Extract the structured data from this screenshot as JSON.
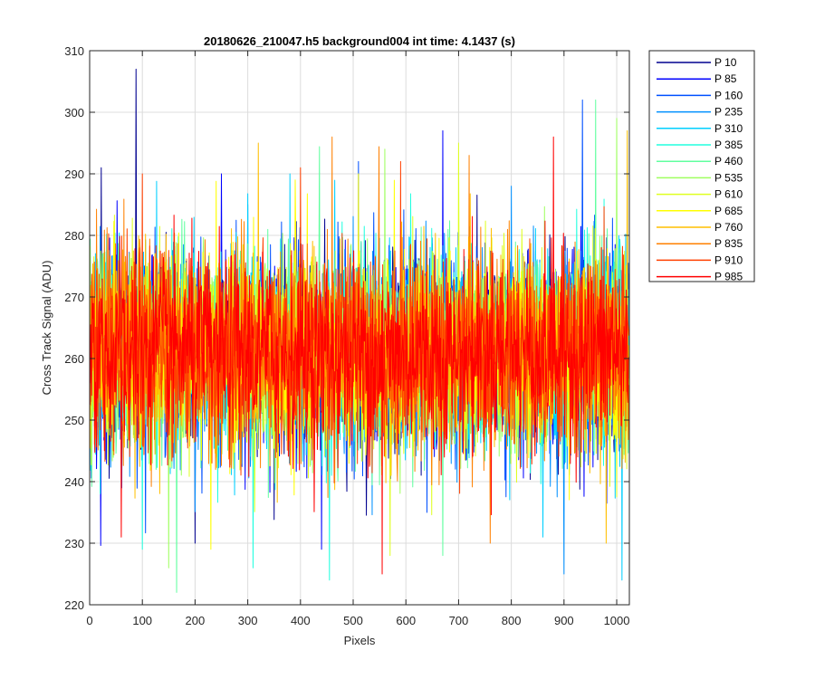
{
  "chart_data": {
    "type": "line",
    "title": "20180626_210047.h5  background004   int time: 4.1437 (s)",
    "xlabel": "Pixels",
    "ylabel": "Cross Track Signal (ADU)",
    "xlim": [
      0,
      1024
    ],
    "ylim": [
      220,
      310
    ],
    "xticks": [
      0,
      100,
      200,
      300,
      400,
      500,
      600,
      700,
      800,
      900,
      1000
    ],
    "yticks": [
      220,
      230,
      240,
      250,
      260,
      270,
      280,
      290,
      300,
      310
    ],
    "grid": true,
    "legend_position": "outside-right",
    "noise_model": {
      "mean": 261,
      "std": 10,
      "n_points": 1024
    },
    "series": [
      {
        "name": "P 10",
        "color": "#00008f",
        "peaks": [
          [
            88,
            307
          ],
          [
            22,
            291
          ],
          [
            200,
            230
          ]
        ]
      },
      {
        "name": "P 85",
        "color": "#0000ff",
        "peaks": [
          [
            670,
            297
          ],
          [
            250,
            290
          ],
          [
            440,
            229
          ]
        ]
      },
      {
        "name": "P 160",
        "color": "#0050ff",
        "peaks": [
          [
            935,
            302
          ],
          [
            510,
            292
          ],
          [
            640,
            235
          ]
        ]
      },
      {
        "name": "P 235",
        "color": "#0090ff",
        "peaks": [
          [
            300,
            285
          ],
          [
            800,
            288
          ],
          [
            900,
            225
          ]
        ]
      },
      {
        "name": "P 310",
        "color": "#00cfff",
        "peaks": [
          [
            1010,
            224
          ],
          [
            860,
            231
          ],
          [
            380,
            290
          ]
        ]
      },
      {
        "name": "P 385",
        "color": "#20ffdf",
        "peaks": [
          [
            310,
            226
          ],
          [
            100,
            229
          ],
          [
            455,
            224
          ]
        ]
      },
      {
        "name": "P 460",
        "color": "#60ff9f",
        "peaks": [
          [
            165,
            222
          ],
          [
            670,
            228
          ],
          [
            960,
            302
          ]
        ]
      },
      {
        "name": "P 535",
        "color": "#9fff60",
        "peaks": [
          [
            150,
            226
          ],
          [
            1000,
            299
          ],
          [
            560,
            294
          ]
        ]
      },
      {
        "name": "P 610",
        "color": "#dfff20",
        "peaks": [
          [
            700,
            295
          ],
          [
            570,
            228
          ],
          [
            820,
            281
          ]
        ]
      },
      {
        "name": "P 685",
        "color": "#ffff00",
        "peaks": [
          [
            390,
            289
          ],
          [
            510,
            290
          ],
          [
            230,
            229
          ]
        ]
      },
      {
        "name": "P 760",
        "color": "#ffbf00",
        "peaks": [
          [
            320,
            295
          ],
          [
            1020,
            297
          ],
          [
            980,
            230
          ]
        ]
      },
      {
        "name": "P 835",
        "color": "#ff8000",
        "peaks": [
          [
            460,
            296
          ],
          [
            720,
            293
          ],
          [
            760,
            230
          ]
        ]
      },
      {
        "name": "P 910",
        "color": "#ff4000",
        "peaks": [
          [
            100,
            290
          ],
          [
            400,
            291
          ],
          [
            590,
            292
          ]
        ]
      },
      {
        "name": "P 985",
        "color": "#ff0000",
        "peaks": [
          [
            555,
            225
          ],
          [
            880,
            296
          ],
          [
            60,
            231
          ]
        ]
      }
    ]
  }
}
